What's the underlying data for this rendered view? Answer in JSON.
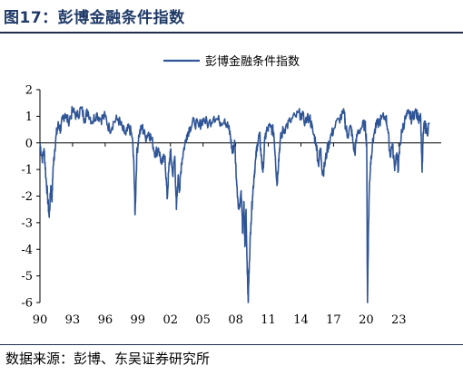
{
  "header": {
    "figure_title": "图17：彭博金融条件指数"
  },
  "footer": {
    "source": "数据来源：彭博、东吴证券研究所"
  },
  "colors": {
    "series": "#2f5597",
    "axis": "#000000",
    "rule": "#1f2f4f",
    "title": "#1f3a68"
  },
  "chart_data": {
    "type": "line",
    "title": "",
    "xlabel": "",
    "ylabel": "",
    "legend": {
      "position": "top-center"
    },
    "grid": false,
    "xlim": [
      1990,
      2026.9
    ],
    "ylim": [
      -6,
      2
    ],
    "y_ticks": [
      2,
      1,
      0,
      -1,
      -2,
      -3,
      -4,
      -5,
      -6
    ],
    "x_ticks": [
      {
        "value": 1990,
        "label": "90"
      },
      {
        "value": 1993,
        "label": "93"
      },
      {
        "value": 1996,
        "label": "96"
      },
      {
        "value": 1999,
        "label": "99"
      },
      {
        "value": 2002,
        "label": "02"
      },
      {
        "value": 2005,
        "label": "05"
      },
      {
        "value": 2008,
        "label": "08"
      },
      {
        "value": 2011,
        "label": "11"
      },
      {
        "value": 2014,
        "label": "14"
      },
      {
        "value": 2017,
        "label": "17"
      },
      {
        "value": 2020,
        "label": "20"
      },
      {
        "value": 2023,
        "label": "23"
      }
    ],
    "series": [
      {
        "name": "彭博金融条件指数",
        "color": "#2f5597",
        "x": [
          1990.0,
          1990.2,
          1990.4,
          1990.55,
          1990.7,
          1990.85,
          1991.0,
          1991.1,
          1991.2,
          1991.35,
          1991.5,
          1991.7,
          1991.9,
          1992.1,
          1992.3,
          1992.6,
          1993.0,
          1993.4,
          1993.8,
          1994.1,
          1994.4,
          1994.8,
          1995.2,
          1995.6,
          1996.0,
          1996.4,
          1996.8,
          1997.2,
          1997.6,
          1997.9,
          1998.2,
          1998.5,
          1998.65,
          1998.75,
          1998.9,
          1999.1,
          1999.4,
          1999.7,
          2000.0,
          2000.3,
          2000.6,
          2000.9,
          2001.2,
          2001.5,
          2001.7,
          2001.85,
          2002.0,
          2002.2,
          2002.4,
          2002.55,
          2002.7,
          2002.85,
          2003.0,
          2003.2,
          2003.5,
          2003.8,
          2004.2,
          2004.6,
          2005.0,
          2005.5,
          2006.0,
          2006.5,
          2007.0,
          2007.3,
          2007.5,
          2007.7,
          2007.9,
          2008.1,
          2008.3,
          2008.5,
          2008.65,
          2008.75,
          2008.85,
          2008.95,
          2009.05,
          2009.15,
          2009.25,
          2009.4,
          2009.55,
          2009.7,
          2009.85,
          2010.0,
          2010.2,
          2010.35,
          2010.5,
          2010.7,
          2010.9,
          2011.2,
          2011.5,
          2011.65,
          2011.8,
          2011.95,
          2012.1,
          2012.3,
          2012.6,
          2013.0,
          2013.5,
          2014.0,
          2014.4,
          2014.8,
          2015.1,
          2015.4,
          2015.6,
          2015.8,
          2016.0,
          2016.15,
          2016.4,
          2016.7,
          2017.0,
          2017.5,
          2018.0,
          2018.1,
          2018.3,
          2018.6,
          2018.8,
          2018.95,
          2019.2,
          2019.6,
          2019.9,
          2020.05,
          2020.12,
          2020.2,
          2020.3,
          2020.45,
          2020.7,
          2021.0,
          2021.4,
          2021.8,
          2022.0,
          2022.2,
          2022.4,
          2022.6,
          2022.8,
          2022.95,
          2023.1,
          2023.3,
          2023.6,
          2023.9,
          2024.2,
          2024.5,
          2024.8,
          2025.0,
          2025.15,
          2025.25,
          2025.4,
          2025.6,
          2025.8
        ],
        "y": [
          0.0,
          -0.6,
          -0.3,
          -1.3,
          -2.0,
          -2.8,
          -1.6,
          -2.2,
          -1.0,
          -0.3,
          0.3,
          0.7,
          0.5,
          0.9,
          1.1,
          0.8,
          1.2,
          1.0,
          1.3,
          0.9,
          1.2,
          0.8,
          1.1,
          0.9,
          1.0,
          0.5,
          0.8,
          0.9,
          0.5,
          0.3,
          0.6,
          0.2,
          -1.0,
          -2.7,
          -0.5,
          0.3,
          0.6,
          0.2,
          0.4,
          0.1,
          -0.4,
          -0.2,
          -0.8,
          -0.5,
          -2.1,
          -1.0,
          -0.3,
          -1.2,
          -0.5,
          -2.5,
          -1.3,
          -1.8,
          -0.8,
          -0.3,
          0.3,
          0.6,
          0.8,
          0.6,
          0.9,
          0.7,
          1.0,
          0.8,
          0.9,
          0.6,
          0.3,
          -0.4,
          0.1,
          -1.6,
          -2.5,
          -1.8,
          -3.4,
          -2.2,
          -3.9,
          -2.5,
          -4.5,
          -6.0,
          -4.5,
          -3.0,
          -2.0,
          -1.2,
          -0.6,
          0.0,
          0.3,
          -0.5,
          -1.1,
          0.2,
          0.5,
          0.6,
          0.4,
          -0.5,
          -1.6,
          -0.6,
          0.1,
          0.4,
          0.6,
          0.8,
          1.0,
          1.1,
          0.8,
          1.0,
          0.4,
          0.0,
          -0.8,
          -0.2,
          -1.2,
          -0.9,
          -0.3,
          0.2,
          0.5,
          0.9,
          1.1,
          0.6,
          0.3,
          0.6,
          0.0,
          -0.4,
          0.4,
          0.6,
          0.7,
          0.0,
          -6.0,
          -3.5,
          -1.5,
          -0.5,
          0.3,
          0.7,
          0.9,
          1.0,
          0.5,
          -0.5,
          0.0,
          -0.9,
          -0.4,
          -1.0,
          -0.1,
          0.5,
          0.9,
          1.1,
          0.9,
          1.2,
          0.9,
          1.1,
          -1.1,
          0.4,
          0.7,
          0.4,
          0.7
        ]
      }
    ]
  }
}
